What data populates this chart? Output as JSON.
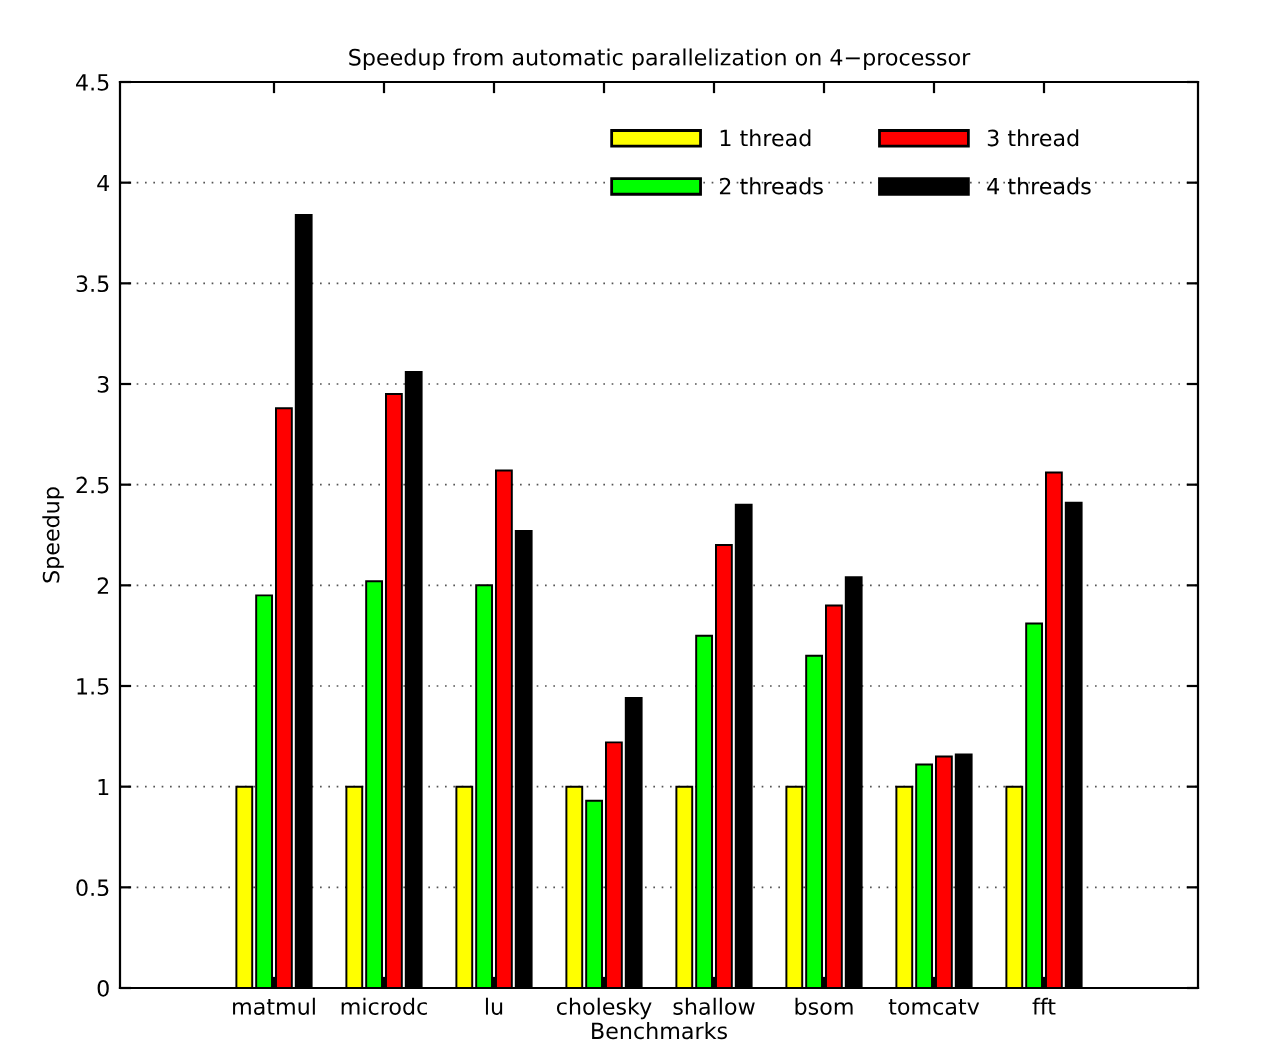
{
  "chart_data": {
    "type": "bar",
    "title": "Speedup from automatic parallelization on 4−processor",
    "xlabel": "Benchmarks",
    "ylabel": "Speedup",
    "categories": [
      "matmul",
      "microdc",
      "lu",
      "cholesky",
      "shallow",
      "bsom",
      "tomcatv",
      "fft"
    ],
    "series": [
      {
        "name": "1 thread",
        "color": "#ffff00",
        "values": [
          1,
          1,
          1,
          1,
          1,
          1,
          1,
          1
        ]
      },
      {
        "name": "2 threads",
        "color": "#00ff00",
        "values": [
          1.95,
          2.02,
          2.0,
          0.93,
          1.75,
          1.65,
          1.11,
          1.81
        ]
      },
      {
        "name": "3 thread",
        "color": "#ff0000",
        "values": [
          2.88,
          2.95,
          2.57,
          1.22,
          2.2,
          1.9,
          1.15,
          2.56
        ]
      },
      {
        "name": "4 threads",
        "color": "#000000",
        "values": [
          3.84,
          3.06,
          2.27,
          1.44,
          2.4,
          2.04,
          1.16,
          2.41
        ]
      }
    ],
    "ylim": [
      0,
      4.5
    ],
    "yticks": [
      0,
      0.5,
      1,
      1.5,
      2,
      2.5,
      3,
      3.5,
      4,
      4.5
    ],
    "grid": "y",
    "legend": "top right"
  }
}
